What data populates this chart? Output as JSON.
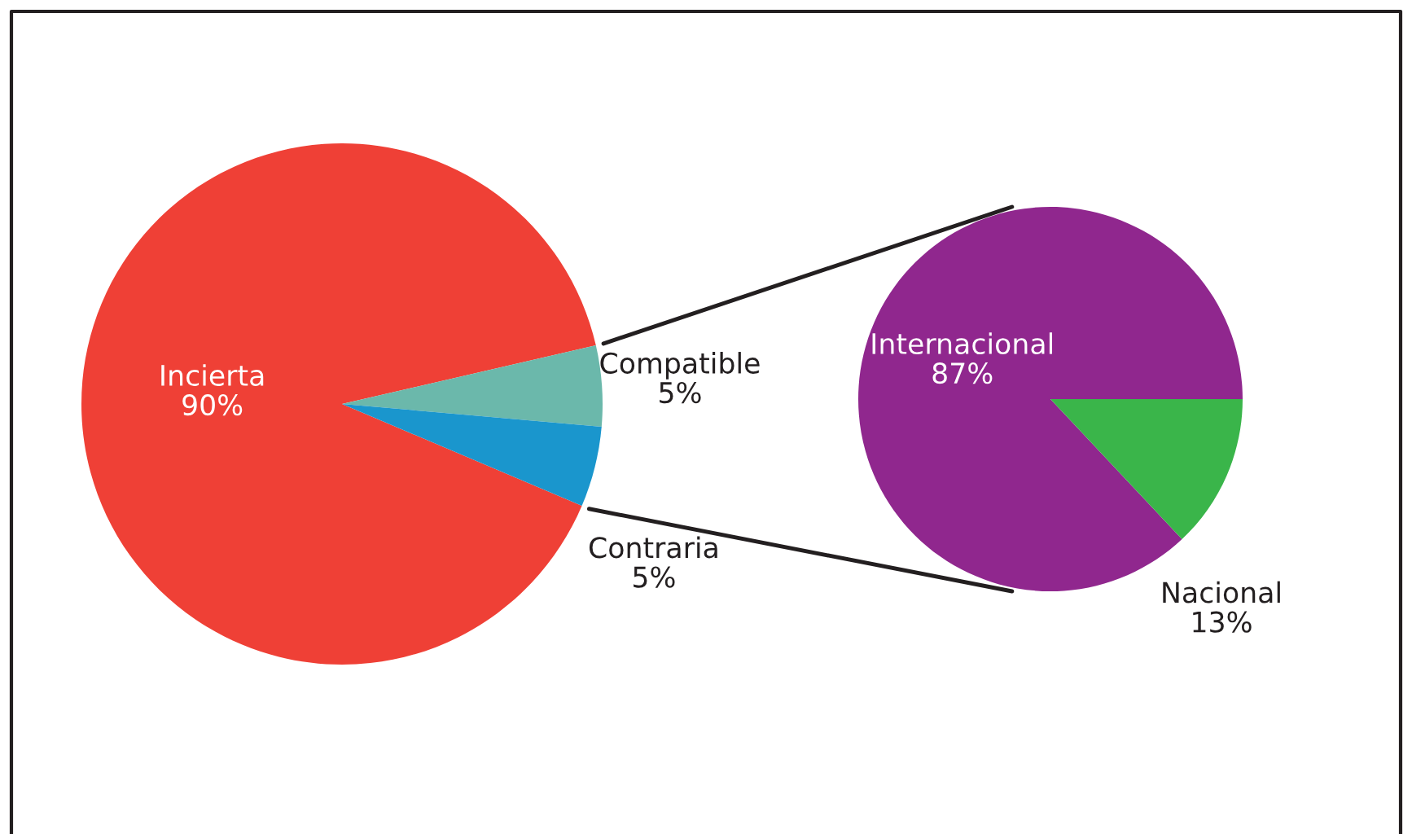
{
  "chart_data": [
    {
      "type": "pie",
      "categories": [
        "Incierta",
        "Compatible",
        "Contraria"
      ],
      "values": [
        90,
        5,
        5
      ],
      "value_labels": [
        "90%",
        "5%",
        "5%"
      ],
      "colors": [
        "#ef4036",
        "#6bb8ab",
        "#1a96cd"
      ]
    },
    {
      "type": "pie",
      "categories": [
        "Internacional",
        "Nacional"
      ],
      "values": [
        87,
        13
      ],
      "value_labels": [
        "87%",
        "13%"
      ],
      "colors": [
        "#90278e",
        "#3ab54a"
      ]
    }
  ]
}
